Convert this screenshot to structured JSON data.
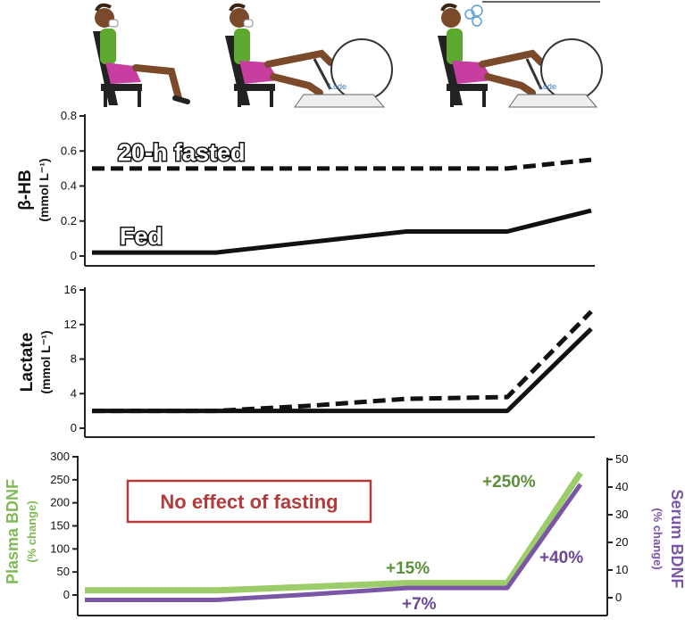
{
  "chart_data": [
    {
      "type": "line",
      "ylabel": "β-HB",
      "yunit": "(mmol L⁻¹)",
      "ylim": [
        0,
        0.8
      ],
      "yticks": [
        "0",
        "0.2",
        "0.4",
        "0.6",
        "0.8"
      ],
      "x": [
        0,
        1,
        2,
        3,
        4,
        5
      ],
      "series": [
        {
          "name": "20-h fasted",
          "style": "dashed",
          "color": "#111111",
          "values": [
            0.5,
            0.5,
            0.5,
            0.5,
            0.5,
            0.55
          ]
        },
        {
          "name": "Fed",
          "style": "solid",
          "color": "#111111",
          "values": [
            0.02,
            0.02,
            0.08,
            0.14,
            0.14,
            0.26
          ]
        }
      ]
    },
    {
      "type": "line",
      "ylabel": "Lactate",
      "yunit": "(mmol L⁻¹)",
      "ylim": [
        0,
        16
      ],
      "yticks": [
        "0",
        "4",
        "8",
        "12",
        "16"
      ],
      "x": [
        0,
        1,
        2,
        3,
        4,
        5
      ],
      "series": [
        {
          "style": "dashed",
          "color": "#111111",
          "values": [
            2,
            2,
            2.6,
            3.4,
            3.6,
            13.5
          ]
        },
        {
          "style": "solid",
          "color": "#111111",
          "values": [
            2,
            2,
            2,
            2,
            2,
            11.5
          ]
        }
      ]
    },
    {
      "type": "line",
      "ylabel_left": "Plasma BDNF",
      "yunit_left": "(% change)",
      "ylabel_right": "Serum BDNF",
      "yunit_right": "(% change)",
      "ylim_left": [
        0,
        300
      ],
      "yticks_left": [
        "0",
        "50",
        "100",
        "150",
        "200",
        "250",
        "300"
      ],
      "ylim_right": [
        0,
        50
      ],
      "yticks_right": [
        "0",
        "10",
        "20",
        "30",
        "40",
        "50"
      ],
      "x": [
        0,
        1,
        2,
        3,
        4,
        5
      ],
      "annotation": "No effect of fasting",
      "series": [
        {
          "axis": "left",
          "color": "#9ccd6a",
          "label": "+15%",
          "values": [
            10,
            10,
            18,
            26,
            26,
            265
          ]
        },
        {
          "axis": "right",
          "color": "#7b56a6",
          "label": "+7%",
          "peak_label": "+40%",
          "values": [
            -0.8,
            -0.8,
            1.2,
            3.5,
            3.5,
            41
          ]
        }
      ],
      "plasma_peak_label": "+250%"
    }
  ],
  "colors": {
    "plasma": "#9ccd6a",
    "serum": "#7b56a6",
    "annotation_border": "#b43b3b",
    "annotation_text": "#b43b3b"
  },
  "illustrations": [
    "seated-rest-icon",
    "cycling-icon",
    "cycling-exhausted-icon"
  ]
}
